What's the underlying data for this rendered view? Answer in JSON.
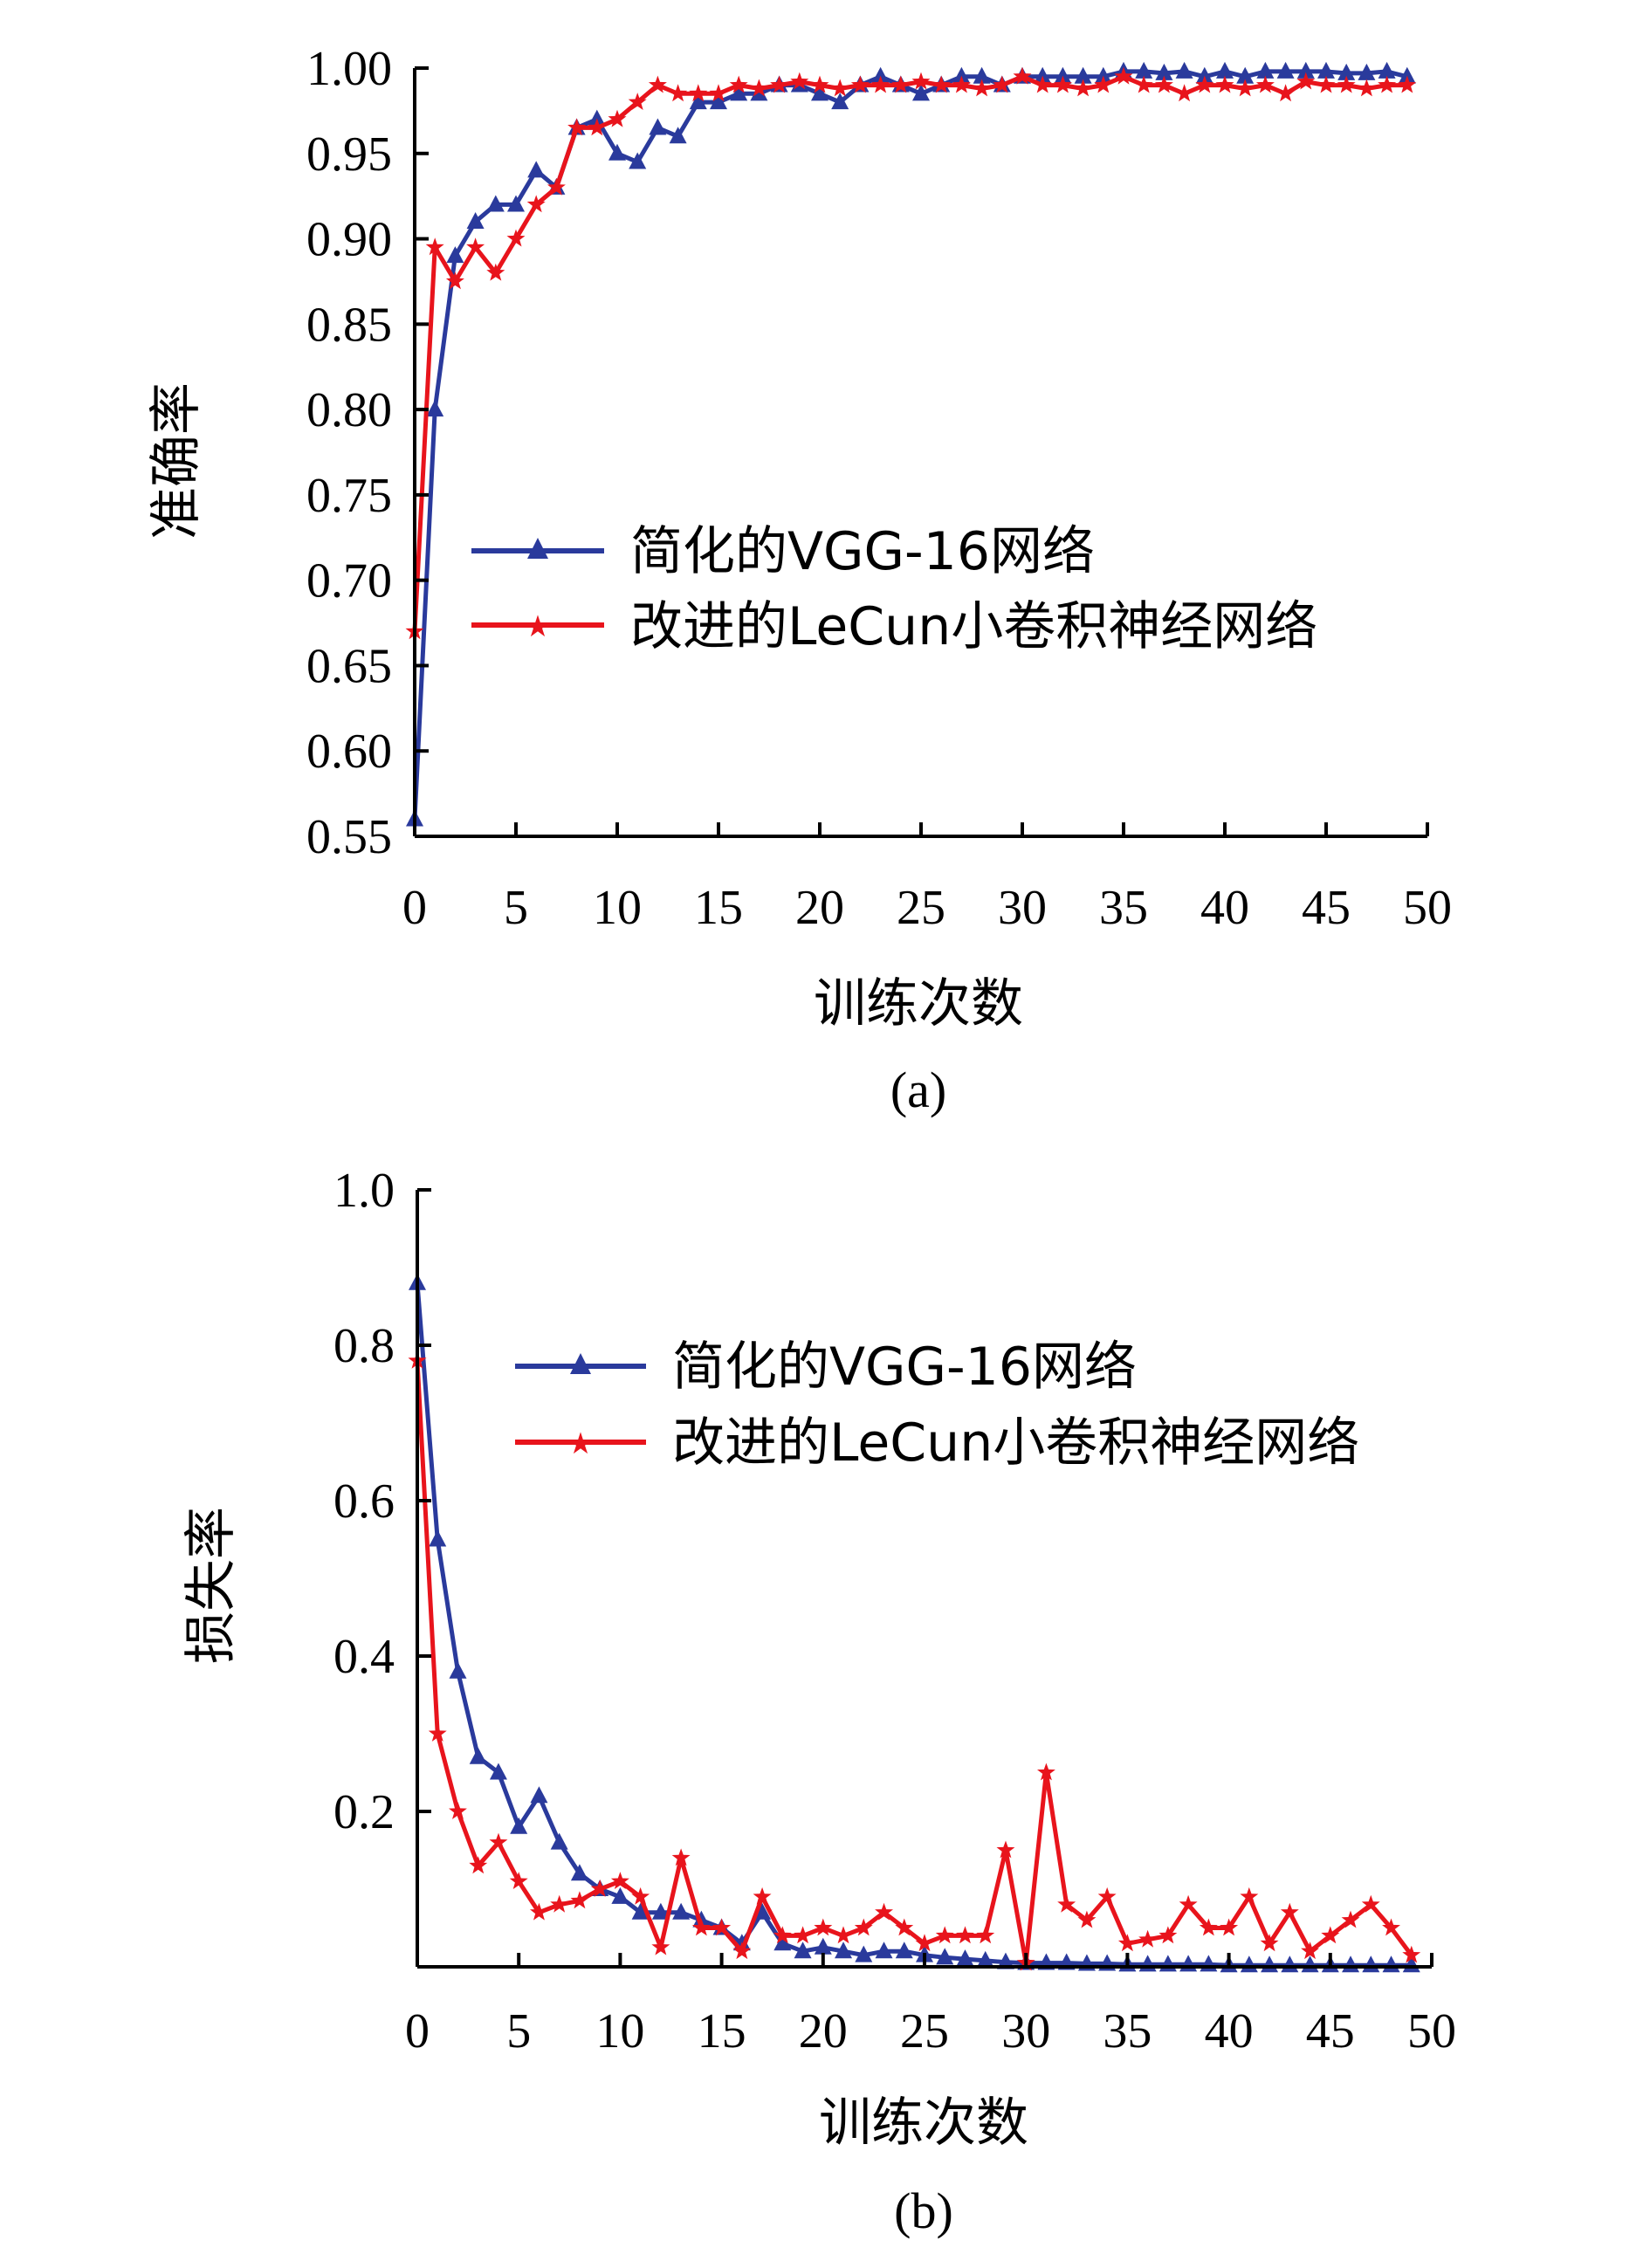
{
  "chart_data": [
    {
      "type": "line",
      "panel_label": "(a)",
      "xlabel": "训练次数",
      "ylabel": "准确率",
      "xlim": [
        0,
        50
      ],
      "ylim": [
        0.55,
        1.0
      ],
      "xticks": [
        0,
        5,
        10,
        15,
        20,
        25,
        30,
        35,
        40,
        45,
        50
      ],
      "xtick_labels": [
        "0",
        "5",
        "10",
        "15",
        "20",
        "25",
        "30",
        "35",
        "40",
        "45",
        "50"
      ],
      "yticks": [
        0.55,
        0.6,
        0.65,
        0.7,
        0.75,
        0.8,
        0.85,
        0.9,
        0.95,
        1.0
      ],
      "ytick_labels": [
        "0.55",
        "0.60",
        "0.65",
        "0.70",
        "0.75",
        "0.80",
        "0.85",
        "0.90",
        "0.95",
        "1.00"
      ],
      "grid": false,
      "legend_position": "center-right",
      "x": [
        0,
        1,
        2,
        3,
        4,
        5,
        6,
        7,
        8,
        9,
        10,
        11,
        12,
        13,
        14,
        15,
        16,
        17,
        18,
        19,
        20,
        21,
        22,
        23,
        24,
        25,
        26,
        27,
        28,
        29,
        30,
        31,
        32,
        33,
        34,
        35,
        36,
        37,
        38,
        39,
        40,
        41,
        42,
        43,
        44,
        45,
        46,
        47,
        48,
        49
      ],
      "series": [
        {
          "name": "简化的VGG-16网络",
          "color": "#2a3a9c",
          "marker": "triangle",
          "values": [
            0.56,
            0.8,
            0.89,
            0.91,
            0.92,
            0.92,
            0.94,
            0.93,
            0.965,
            0.97,
            0.95,
            0.945,
            0.965,
            0.96,
            0.98,
            0.98,
            0.985,
            0.985,
            0.99,
            0.99,
            0.985,
            0.98,
            0.99,
            0.995,
            0.99,
            0.985,
            0.99,
            0.995,
            0.995,
            0.99,
            0.995,
            0.995,
            0.995,
            0.995,
            0.995,
            0.998,
            0.998,
            0.997,
            0.998,
            0.995,
            0.998,
            0.995,
            0.998,
            0.998,
            0.998,
            0.998,
            0.997,
            0.997,
            0.998,
            0.995
          ]
        },
        {
          "name": "改进的LeCun小卷积神经网络",
          "color": "#e8141c",
          "marker": "star",
          "values": [
            0.67,
            0.895,
            0.875,
            0.895,
            0.88,
            0.9,
            0.92,
            0.93,
            0.965,
            0.965,
            0.97,
            0.98,
            0.99,
            0.985,
            0.985,
            0.985,
            0.99,
            0.988,
            0.99,
            0.992,
            0.99,
            0.988,
            0.99,
            0.99,
            0.99,
            0.992,
            0.99,
            0.99,
            0.988,
            0.99,
            0.995,
            0.99,
            0.99,
            0.988,
            0.99,
            0.995,
            0.99,
            0.99,
            0.985,
            0.99,
            0.99,
            0.988,
            0.99,
            0.985,
            0.992,
            0.99,
            0.99,
            0.988,
            0.99,
            0.99
          ]
        }
      ]
    },
    {
      "type": "line",
      "panel_label": "(b)",
      "xlabel": "训练次数",
      "ylabel": "损失率",
      "xlim": [
        0,
        50
      ],
      "ylim": [
        0,
        1.0
      ],
      "xticks": [
        0,
        5,
        10,
        15,
        20,
        25,
        30,
        35,
        40,
        45,
        50
      ],
      "xtick_labels": [
        "0",
        "5",
        "10",
        "15",
        "20",
        "25",
        "30",
        "35",
        "40",
        "45",
        "50"
      ],
      "yticks": [
        0.2,
        0.4,
        0.6,
        0.8,
        1.0
      ],
      "ytick_labels": [
        "0.2",
        "0.4",
        "0.6",
        "0.8",
        "1.0"
      ],
      "grid": false,
      "legend_position": "top-right",
      "x": [
        0,
        1,
        2,
        3,
        4,
        5,
        6,
        7,
        8,
        9,
        10,
        11,
        12,
        13,
        14,
        15,
        16,
        17,
        18,
        19,
        20,
        21,
        22,
        23,
        24,
        25,
        26,
        27,
        28,
        29,
        30,
        31,
        32,
        33,
        34,
        35,
        36,
        37,
        38,
        39,
        40,
        41,
        42,
        43,
        44,
        45,
        46,
        47,
        48,
        49
      ],
      "series": [
        {
          "name": "简化的VGG-16网络",
          "color": "#2a3a9c",
          "marker": "triangle",
          "values": [
            0.88,
            0.55,
            0.38,
            0.27,
            0.25,
            0.18,
            0.22,
            0.16,
            0.12,
            0.1,
            0.09,
            0.07,
            0.07,
            0.07,
            0.06,
            0.05,
            0.03,
            0.07,
            0.03,
            0.02,
            0.025,
            0.02,
            0.015,
            0.02,
            0.02,
            0.015,
            0.012,
            0.01,
            0.008,
            0.006,
            0.005,
            0.005,
            0.005,
            0.004,
            0.004,
            0.003,
            0.003,
            0.003,
            0.003,
            0.003,
            0.002,
            0.002,
            0.002,
            0.002,
            0.002,
            0.002,
            0.002,
            0.002,
            0.002,
            0.002
          ]
        },
        {
          "name": "改进的LeCun小卷积神经网络",
          "color": "#e8141c",
          "marker": "star",
          "values": [
            0.78,
            0.3,
            0.2,
            0.13,
            0.16,
            0.11,
            0.07,
            0.08,
            0.085,
            0.1,
            0.11,
            0.09,
            0.025,
            0.14,
            0.05,
            0.05,
            0.02,
            0.09,
            0.04,
            0.04,
            0.05,
            0.04,
            0.05,
            0.07,
            0.05,
            0.03,
            0.04,
            0.04,
            0.04,
            0.15,
            0.005,
            0.25,
            0.08,
            0.06,
            0.09,
            0.03,
            0.035,
            0.04,
            0.08,
            0.05,
            0.05,
            0.09,
            0.03,
            0.07,
            0.02,
            0.04,
            0.06,
            0.08,
            0.05,
            0.015
          ]
        }
      ]
    }
  ]
}
